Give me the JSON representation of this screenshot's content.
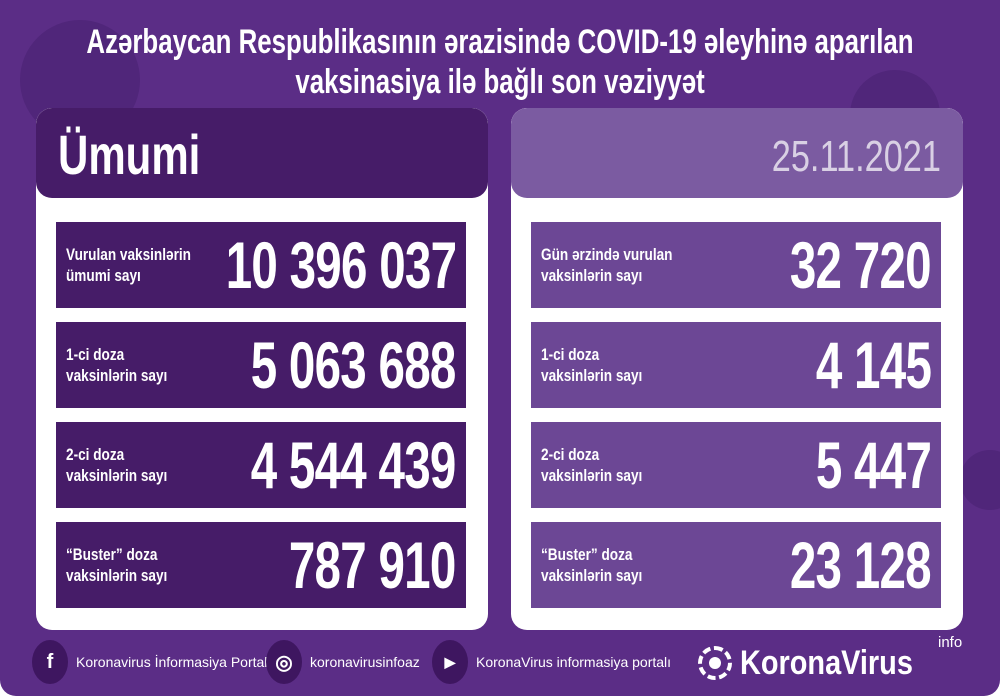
{
  "title": {
    "line1": "Azərbaycan Respublikasının ərazisində COVID-19 əleyhinə aparılan",
    "line2": "vaksinasiya ilə bağlı son vəziyyət"
  },
  "left": {
    "heading": "Ümumi",
    "rows": [
      {
        "label1": "Vurulan vaksinlərin",
        "label2": "ümumi sayı",
        "value": "10 396 037"
      },
      {
        "label1": "1-ci doza",
        "label2": "vaksinlərin sayı",
        "value": "5 063 688"
      },
      {
        "label1": "2-ci doza",
        "label2": "vaksinlərin sayı",
        "value": "4 544 439"
      },
      {
        "label1": "“Buster” doza",
        "label2": "vaksinlərin sayı",
        "value": "787 910"
      }
    ]
  },
  "right": {
    "date": "25.11.2021",
    "rows": [
      {
        "label1": "Gün ərzində vurulan",
        "label2": "vaksinlərin sayı",
        "value": "32 720"
      },
      {
        "label1": "1-ci doza",
        "label2": "vaksinlərin sayı",
        "value": "4 145"
      },
      {
        "label1": "2-ci doza",
        "label2": "vaksinlərin sayı",
        "value": "5 447"
      },
      {
        "label1": "“Buster” doza",
        "label2": "vaksinlərin sayı",
        "value": "23 128"
      }
    ]
  },
  "footer": {
    "facebook": "Koronavirus İnformasiya Portalı",
    "instagram": "koronavirusinfoaz",
    "youtube": "KoronaVirus informasiya portalı",
    "logo_name": "KoronaVirus",
    "logo_sup": "info"
  },
  "colors": {
    "background": "#5b2d86",
    "dark_panel": "#461c68",
    "light_panel": "#6c4795"
  },
  "icons": [
    "facebook-icon",
    "instagram-icon",
    "youtube-icon",
    "virus-logo-icon"
  ]
}
